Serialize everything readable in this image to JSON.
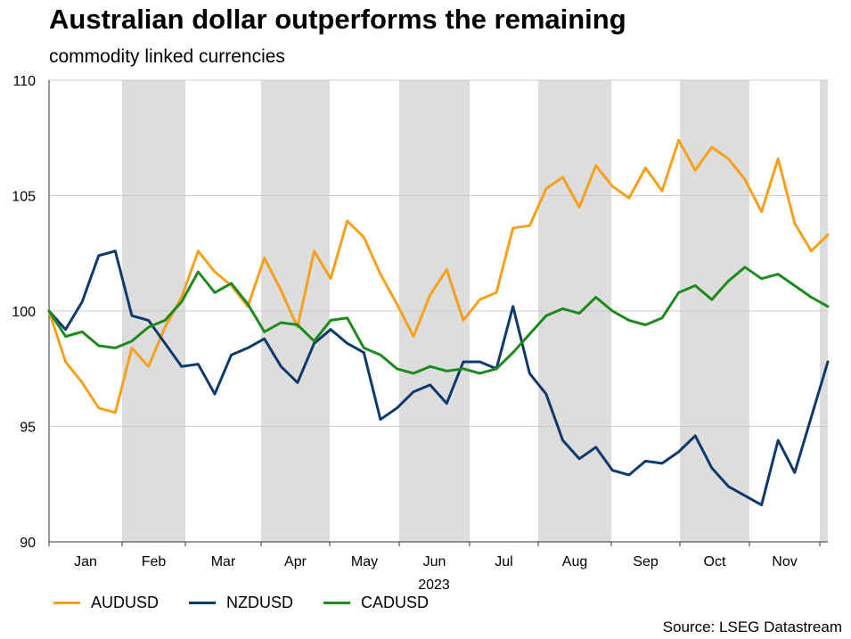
{
  "chart_data": {
    "type": "line",
    "title": "Australian dollar outperforms the remaining",
    "subtitle": "commodity linked currencies",
    "xlabel": "2023",
    "ylabel": "",
    "ylim": [
      90,
      110
    ],
    "yticks": [
      90,
      95,
      100,
      105,
      110
    ],
    "months": [
      "Jan",
      "Feb",
      "Mar",
      "Apr",
      "May",
      "Jun",
      "Jul",
      "Aug",
      "Sep",
      "Oct",
      "Nov"
    ],
    "x_days": [
      0,
      7,
      14,
      21,
      28,
      35,
      42,
      49,
      56,
      63,
      70,
      77,
      84,
      91,
      98,
      105,
      112,
      119,
      126,
      133,
      140,
      147,
      154,
      161,
      168,
      175,
      182,
      189,
      196,
      203,
      210,
      217,
      224,
      231,
      238,
      245,
      252,
      259,
      266,
      273,
      280,
      287,
      294,
      301,
      308,
      315,
      322,
      329
    ],
    "series": [
      {
        "name": "AUDUSD",
        "color": "#F7A11A",
        "values": [
          100.0,
          97.8,
          96.9,
          95.8,
          95.6,
          98.4,
          97.6,
          99.3,
          100.6,
          102.6,
          101.7,
          101.1,
          100.2,
          102.3,
          100.9,
          99.3,
          102.6,
          101.4,
          103.9,
          103.2,
          101.6,
          100.3,
          98.9,
          100.7,
          101.8,
          99.6,
          100.5,
          100.8,
          103.6,
          103.7,
          105.3,
          105.8,
          104.5,
          106.3,
          105.4,
          104.9,
          106.2,
          105.2,
          107.4,
          106.1,
          107.1,
          106.6,
          105.7,
          104.3,
          106.6,
          103.8,
          102.6,
          103.3
        ],
        "line_width": 3
      },
      {
        "name": "NZDUSD",
        "color": "#0E3A6B",
        "values": [
          100.0,
          99.2,
          100.4,
          102.4,
          102.6,
          99.8,
          99.6,
          98.6,
          97.6,
          97.7,
          96.4,
          98.1,
          98.4,
          98.8,
          97.6,
          96.9,
          98.6,
          99.2,
          98.6,
          98.2,
          95.3,
          95.8,
          96.5,
          96.8,
          96.0,
          97.8,
          97.8,
          97.5,
          100.2,
          97.3,
          96.4,
          94.4,
          93.6,
          94.1,
          93.1,
          92.9,
          93.5,
          93.4,
          93.9,
          94.6,
          93.2,
          92.4,
          92.0,
          91.6,
          94.4,
          93.0,
          95.4,
          97.8
        ],
        "line_width": 3
      },
      {
        "name": "CADUSD",
        "color": "#1E8A1E",
        "values": [
          100.0,
          98.9,
          99.1,
          98.5,
          98.4,
          98.7,
          99.3,
          99.6,
          100.4,
          101.7,
          100.8,
          101.2,
          100.3,
          99.1,
          99.5,
          99.4,
          98.7,
          99.6,
          99.7,
          98.4,
          98.1,
          97.5,
          97.3,
          97.6,
          97.4,
          97.5,
          97.3,
          97.5,
          98.2,
          99.0,
          99.8,
          100.1,
          99.9,
          100.6,
          100.0,
          99.6,
          99.4,
          99.7,
          100.8,
          101.1,
          100.5,
          101.3,
          101.9,
          101.4,
          101.6,
          101.1,
          100.6,
          100.2
        ],
        "line_width": 3
      }
    ]
  },
  "source": "Source: LSEG Datastream"
}
